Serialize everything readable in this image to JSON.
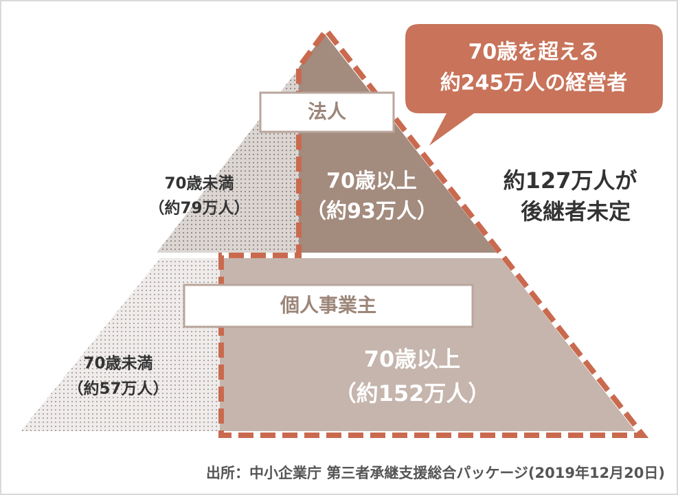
{
  "callout": {
    "lines": [
      "70歳を超える",
      "約245万人の経営者"
    ]
  },
  "corporation": {
    "label": "法人",
    "under70": {
      "lines": [
        "70歳未満",
        "（約79万人）"
      ]
    },
    "over70": {
      "lines": [
        "70歳以上",
        "（約93万人）"
      ]
    }
  },
  "sole_proprietor": {
    "label": "個人事業主",
    "under70": {
      "lines": [
        "70歳未満",
        "（約57万人）"
      ]
    },
    "over70": {
      "lines": [
        "70歳以上",
        "（約152万人）"
      ]
    }
  },
  "side_note": {
    "lines": [
      "約127万人が",
      "後継者未定"
    ]
  },
  "source": "出所：中小企業庁 第三者承継支援総合パッケージ(2019年12月20日)"
}
